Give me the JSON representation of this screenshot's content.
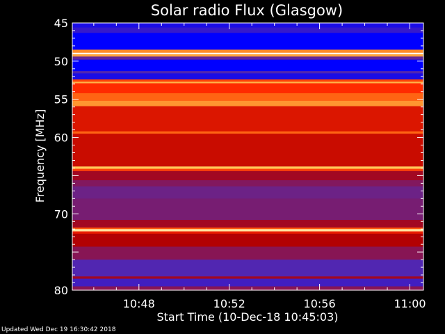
{
  "chart_data": {
    "type": "heatmap",
    "title": "Solar radio Flux (Glasgow)",
    "xlabel": "Start Time (10-Dec-18 10:45:03)",
    "ylabel": "Frequency [MHz]",
    "ylim": [
      45,
      80
    ],
    "y_ticks": [
      45,
      50,
      55,
      60,
      65,
      70,
      75,
      80
    ],
    "y_tick_labels": [
      "45",
      "50",
      "55",
      "60",
      "",
      "70",
      "",
      "80"
    ],
    "x_tick_labels": [
      "10:48",
      "10:52",
      "10:56",
      "11:00"
    ],
    "x_ticks_minutes": [
      48,
      52,
      56,
      60
    ],
    "xlim_minutes": [
      45.05,
      60.6
    ],
    "colormap": [
      "#0000ff",
      "#5a2aa8",
      "#b40000",
      "#ff2a00",
      "#ff7a1a",
      "#ffd060",
      "#ffffff"
    ],
    "bands": [
      {
        "from": 45.0,
        "to": 45.6,
        "level": 0.05
      },
      {
        "from": 45.6,
        "to": 46.3,
        "level": 0.1
      },
      {
        "from": 46.3,
        "to": 48.5,
        "level": 0.0
      },
      {
        "from": 48.5,
        "to": 48.9,
        "level": 0.7
      },
      {
        "from": 48.9,
        "to": 49.1,
        "level": 0.98
      },
      {
        "from": 49.1,
        "to": 49.4,
        "level": 0.75
      },
      {
        "from": 49.4,
        "to": 49.8,
        "level": 0.18
      },
      {
        "from": 49.8,
        "to": 51.3,
        "level": 0.0
      },
      {
        "from": 51.3,
        "to": 51.6,
        "level": 0.15
      },
      {
        "from": 51.6,
        "to": 52.4,
        "level": 0.05
      },
      {
        "from": 52.4,
        "to": 52.7,
        "level": 0.55
      },
      {
        "from": 52.7,
        "to": 52.9,
        "level": 0.78
      },
      {
        "from": 52.9,
        "to": 54.2,
        "level": 0.5
      },
      {
        "from": 54.2,
        "to": 55.2,
        "level": 0.62
      },
      {
        "from": 55.2,
        "to": 55.9,
        "level": 0.72
      },
      {
        "from": 55.9,
        "to": 59.2,
        "level": 0.42
      },
      {
        "from": 59.2,
        "to": 59.5,
        "level": 0.62
      },
      {
        "from": 59.5,
        "to": 63.8,
        "level": 0.38
      },
      {
        "from": 63.8,
        "to": 64.1,
        "level": 0.82
      },
      {
        "from": 64.1,
        "to": 64.4,
        "level": 0.55
      },
      {
        "from": 64.4,
        "to": 65.6,
        "level": 0.3
      },
      {
        "from": 65.6,
        "to": 66.4,
        "level": 0.24
      },
      {
        "from": 66.4,
        "to": 68.0,
        "level": 0.2
      },
      {
        "from": 68.0,
        "to": 70.8,
        "level": 0.22
      },
      {
        "from": 70.8,
        "to": 71.8,
        "level": 0.3
      },
      {
        "from": 71.8,
        "to": 72.0,
        "level": 0.6
      },
      {
        "from": 72.0,
        "to": 72.3,
        "level": 0.9
      },
      {
        "from": 72.3,
        "to": 72.6,
        "level": 0.45
      },
      {
        "from": 72.6,
        "to": 74.3,
        "level": 0.33
      },
      {
        "from": 74.3,
        "to": 76.0,
        "level": 0.25
      },
      {
        "from": 76.0,
        "to": 78.2,
        "level": 0.15
      },
      {
        "from": 78.2,
        "to": 78.5,
        "level": 0.3
      },
      {
        "from": 78.5,
        "to": 79.5,
        "level": 0.12
      },
      {
        "from": 79.5,
        "to": 80.0,
        "level": 0.25
      }
    ]
  },
  "footer": {
    "updated": "Updated Wed Dec 19 16:30:42 2018"
  }
}
